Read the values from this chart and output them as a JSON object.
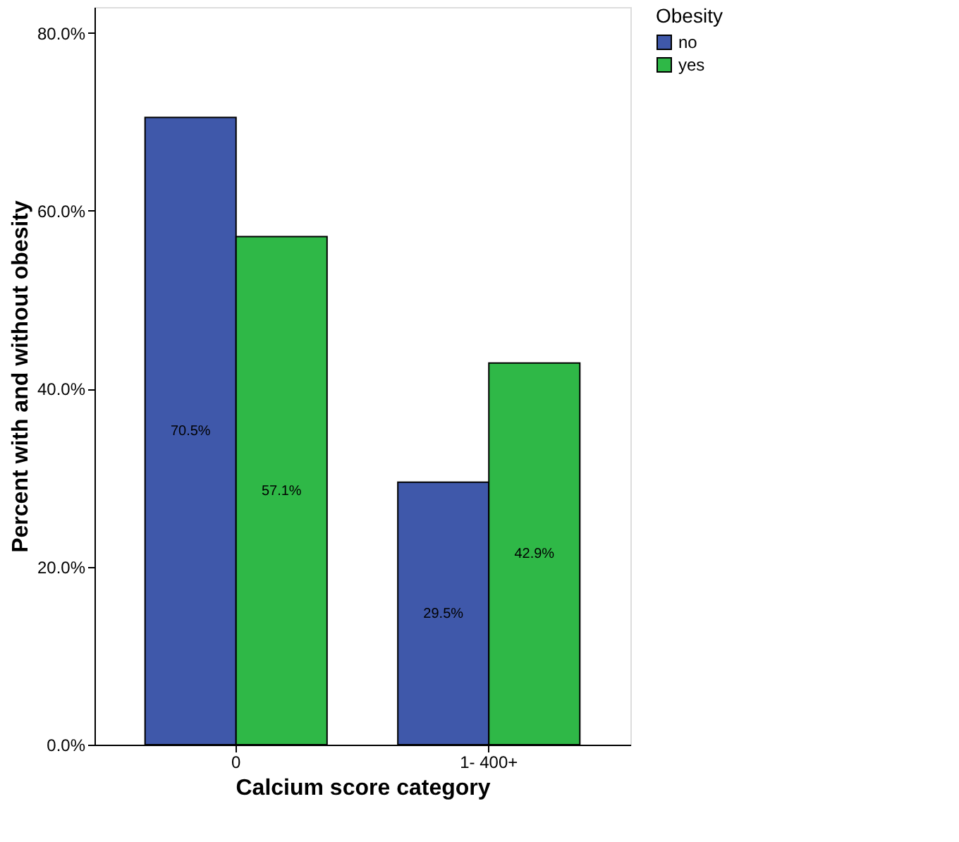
{
  "chart_data": {
    "type": "bar",
    "xlabel": "Calcium score category",
    "ylabel": "Percent with and without obesity",
    "legend_title": "Obesity",
    "legend": "top right",
    "grid": false,
    "categories": [
      "0",
      "1- 400+"
    ],
    "series": [
      {
        "name": "no",
        "color": "#3f58aa",
        "values": [
          70.5,
          29.5
        ],
        "value_labels": [
          "70.5%",
          "29.5%"
        ]
      },
      {
        "name": "yes",
        "color": "#2fb847",
        "values": [
          57.1,
          42.9
        ],
        "value_labels": [
          "57.1%",
          "42.9%"
        ]
      }
    ],
    "ylim": [
      0,
      82.9
    ],
    "yticks": [
      {
        "value": 0,
        "label": "0.0%"
      },
      {
        "value": 20,
        "label": "20.0%"
      },
      {
        "value": 40,
        "label": "40.0%"
      },
      {
        "value": 60,
        "label": "60.0%"
      },
      {
        "value": 80,
        "label": "80.0%"
      }
    ]
  }
}
